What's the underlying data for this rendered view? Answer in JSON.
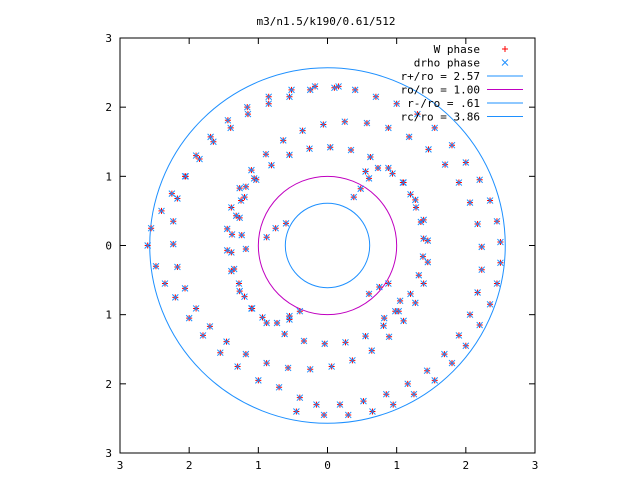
{
  "chart_data": {
    "type": "scatter",
    "title": "m3/n1.5/k190/0.61/512",
    "xlim": [
      -3,
      3
    ],
    "ylim": [
      -3,
      3
    ],
    "x_ticks": [
      -3,
      -2,
      -1,
      0,
      1,
      2,
      3
    ],
    "x_tick_labels": [
      "3",
      "2",
      "1",
      "0",
      "1",
      "2",
      "3"
    ],
    "y_ticks": [
      3,
      2,
      1,
      0,
      -1,
      -2,
      -3
    ],
    "y_tick_labels": [
      "3",
      "2",
      "1",
      "0",
      "1",
      "2",
      "3"
    ],
    "grid": false,
    "legend_position": "top-right",
    "colors": {
      "w_phase": "#ff0000",
      "drho_phase": "#1e90ff",
      "r_plus": "#1e90ff",
      "r_o": "#c000c0",
      "r_minus": "#1e90ff",
      "r_c": "#1e90ff",
      "frame": "#000000"
    },
    "legend": [
      {
        "label": "W phase",
        "marker": "plus",
        "color_key": "w_phase"
      },
      {
        "label": "drho phase",
        "marker": "x",
        "color_key": "drho_phase"
      },
      {
        "label": "r+/ro = 2.57",
        "marker": "line",
        "color_key": "r_plus"
      },
      {
        "label": "ro/ro = 1.00",
        "marker": "line",
        "color_key": "r_o"
      },
      {
        "label": "r-/ro = .61",
        "marker": "line",
        "color_key": "r_minus"
      },
      {
        "label": "rc/ro = 3.86",
        "marker": "line",
        "color_key": "r_c"
      }
    ],
    "circles": [
      {
        "name": "r+/ro",
        "radius": 2.57,
        "color_key": "r_plus"
      },
      {
        "name": "ro/ro",
        "radius": 1.0,
        "color_key": "r_o"
      },
      {
        "name": "r-/ro",
        "radius": 0.61,
        "color_key": "r_minus"
      }
    ],
    "series": [
      {
        "name": "W phase / drho phase — arm A",
        "points": [
          [
            0.55,
            1.07
          ],
          [
            0.73,
            1.12
          ],
          [
            0.94,
            1.04
          ],
          [
            1.09,
            0.91
          ],
          [
            1.2,
            0.74
          ],
          [
            1.28,
            0.55
          ],
          [
            1.35,
            0.34
          ],
          [
            1.39,
            0.1
          ],
          [
            1.38,
            -0.16
          ],
          [
            1.32,
            -0.43
          ],
          [
            1.2,
            -0.7
          ],
          [
            1.03,
            -0.95
          ],
          [
            0.81,
            -1.16
          ],
          [
            0.55,
            -1.31
          ],
          [
            0.26,
            -1.4
          ],
          [
            -0.04,
            -1.42
          ],
          [
            -0.34,
            -1.38
          ],
          [
            -0.62,
            -1.28
          ],
          [
            -0.88,
            -1.12
          ],
          [
            -1.1,
            -0.91
          ],
          [
            -1.27,
            -0.66
          ],
          [
            -1.39,
            -0.37
          ],
          [
            -1.45,
            -0.07
          ],
          [
            -1.45,
            0.24
          ],
          [
            -1.39,
            0.55
          ],
          [
            -1.27,
            0.83
          ],
          [
            -1.1,
            1.09
          ],
          [
            -0.89,
            1.32
          ],
          [
            -0.64,
            1.52
          ],
          [
            -0.36,
            1.66
          ],
          [
            -0.06,
            1.75
          ],
          [
            0.25,
            1.79
          ],
          [
            0.57,
            1.77
          ],
          [
            0.88,
            1.7
          ],
          [
            1.18,
            1.57
          ],
          [
            1.46,
            1.39
          ],
          [
            1.7,
            1.17
          ],
          [
            1.9,
            0.91
          ],
          [
            2.06,
            0.62
          ],
          [
            2.17,
            0.31
          ],
          [
            2.23,
            -0.02
          ],
          [
            2.23,
            -0.35
          ],
          [
            2.17,
            -0.68
          ],
          [
            2.06,
            -1.0
          ],
          [
            1.9,
            -1.3
          ],
          [
            1.69,
            -1.57
          ],
          [
            1.44,
            -1.81
          ],
          [
            1.16,
            -2.0
          ],
          [
            0.85,
            -2.15
          ],
          [
            0.52,
            -2.25
          ],
          [
            0.18,
            -2.3
          ],
          [
            -0.16,
            -2.3
          ]
        ]
      },
      {
        "name": "W phase / drho phase — arm B",
        "points": [
          [
            -0.55,
            -1.07
          ],
          [
            -0.73,
            -1.12
          ],
          [
            -0.94,
            -1.04
          ],
          [
            -1.09,
            -0.91
          ],
          [
            -1.2,
            -0.74
          ],
          [
            -1.28,
            -0.55
          ],
          [
            -1.35,
            -0.34
          ],
          [
            -1.39,
            -0.1
          ],
          [
            -1.38,
            0.16
          ],
          [
            -1.32,
            0.43
          ],
          [
            -1.2,
            0.7
          ],
          [
            -1.03,
            0.95
          ],
          [
            -0.81,
            1.16
          ],
          [
            -0.55,
            1.31
          ],
          [
            -0.26,
            1.4
          ],
          [
            0.04,
            1.42
          ],
          [
            0.34,
            1.38
          ],
          [
            0.62,
            1.28
          ],
          [
            0.88,
            1.12
          ],
          [
            1.1,
            0.91
          ],
          [
            1.27,
            0.66
          ],
          [
            1.39,
            0.37
          ],
          [
            1.45,
            0.07
          ],
          [
            1.45,
            -0.24
          ],
          [
            1.39,
            -0.55
          ],
          [
            1.27,
            -0.83
          ],
          [
            1.1,
            -1.09
          ],
          [
            0.89,
            -1.32
          ],
          [
            0.64,
            -1.52
          ],
          [
            0.36,
            -1.66
          ],
          [
            0.06,
            -1.75
          ],
          [
            -0.25,
            -1.79
          ],
          [
            -0.57,
            -1.77
          ],
          [
            -0.88,
            -1.7
          ],
          [
            -1.18,
            -1.57
          ],
          [
            -1.46,
            -1.39
          ],
          [
            -1.7,
            -1.17
          ],
          [
            -1.9,
            -0.91
          ],
          [
            -2.06,
            -0.62
          ],
          [
            -2.17,
            -0.31
          ],
          [
            -2.23,
            0.02
          ],
          [
            -2.23,
            0.35
          ],
          [
            -2.17,
            0.68
          ],
          [
            -2.06,
            1.0
          ],
          [
            -1.9,
            1.3
          ],
          [
            -1.69,
            1.57
          ],
          [
            -1.44,
            1.81
          ],
          [
            -1.16,
            2.0
          ],
          [
            -0.85,
            2.15
          ],
          [
            -0.52,
            2.25
          ],
          [
            -0.18,
            2.3
          ],
          [
            0.16,
            2.3
          ]
        ]
      },
      {
        "name": "inner hooks",
        "points": [
          [
            -1.06,
            0.97
          ],
          [
            -1.18,
            0.85
          ],
          [
            -1.25,
            0.65
          ],
          [
            -1.27,
            0.4
          ],
          [
            -1.24,
            0.15
          ],
          [
            -1.18,
            -0.05
          ],
          [
            -0.88,
            0.12
          ],
          [
            -0.75,
            0.25
          ],
          [
            -0.6,
            0.32
          ],
          [
            0.6,
            0.97
          ],
          [
            0.48,
            0.82
          ],
          [
            0.38,
            0.7
          ],
          [
            0.88,
            -0.55
          ],
          [
            0.75,
            -0.6
          ],
          [
            0.6,
            -0.7
          ],
          [
            1.05,
            -0.8
          ],
          [
            0.98,
            -0.95
          ],
          [
            0.82,
            -1.05
          ],
          [
            -0.55,
            -1.02
          ],
          [
            -0.4,
            -0.95
          ]
        ]
      },
      {
        "name": "outer points",
        "points": [
          [
            -2.6,
            0.0
          ],
          [
            -2.55,
            0.25
          ],
          [
            -2.48,
            -0.3
          ],
          [
            -2.4,
            0.5
          ],
          [
            -2.35,
            -0.55
          ],
          [
            -2.25,
            0.75
          ],
          [
            -2.2,
            -0.75
          ],
          [
            -2.05,
            1.0
          ],
          [
            -2.0,
            -1.05
          ],
          [
            -1.85,
            1.25
          ],
          [
            -1.8,
            -1.3
          ],
          [
            -1.65,
            1.5
          ],
          [
            -1.55,
            -1.55
          ],
          [
            -1.4,
            1.7
          ],
          [
            -1.3,
            -1.75
          ],
          [
            -1.15,
            1.9
          ],
          [
            -1.0,
            -1.95
          ],
          [
            -0.85,
            2.05
          ],
          [
            -0.7,
            -2.05
          ],
          [
            -0.55,
            2.15
          ],
          [
            -0.4,
            -2.2
          ],
          [
            -0.25,
            2.25
          ],
          [
            0.1,
            2.28
          ],
          [
            0.4,
            2.25
          ],
          [
            0.7,
            2.15
          ],
          [
            1.0,
            2.05
          ],
          [
            1.3,
            1.9
          ],
          [
            1.55,
            1.7
          ],
          [
            1.8,
            1.45
          ],
          [
            2.0,
            1.2
          ],
          [
            2.2,
            0.95
          ],
          [
            2.35,
            0.65
          ],
          [
            2.45,
            0.35
          ],
          [
            2.5,
            0.05
          ],
          [
            2.5,
            -0.25
          ],
          [
            2.45,
            -0.55
          ],
          [
            2.35,
            -0.85
          ],
          [
            2.2,
            -1.15
          ],
          [
            2.0,
            -1.45
          ],
          [
            1.8,
            -1.7
          ],
          [
            1.55,
            -1.95
          ],
          [
            1.25,
            -2.15
          ],
          [
            0.95,
            -2.3
          ],
          [
            0.65,
            -2.4
          ],
          [
            0.3,
            -2.45
          ],
          [
            -0.05,
            -2.45
          ],
          [
            -0.45,
            -2.4
          ]
        ]
      }
    ]
  }
}
